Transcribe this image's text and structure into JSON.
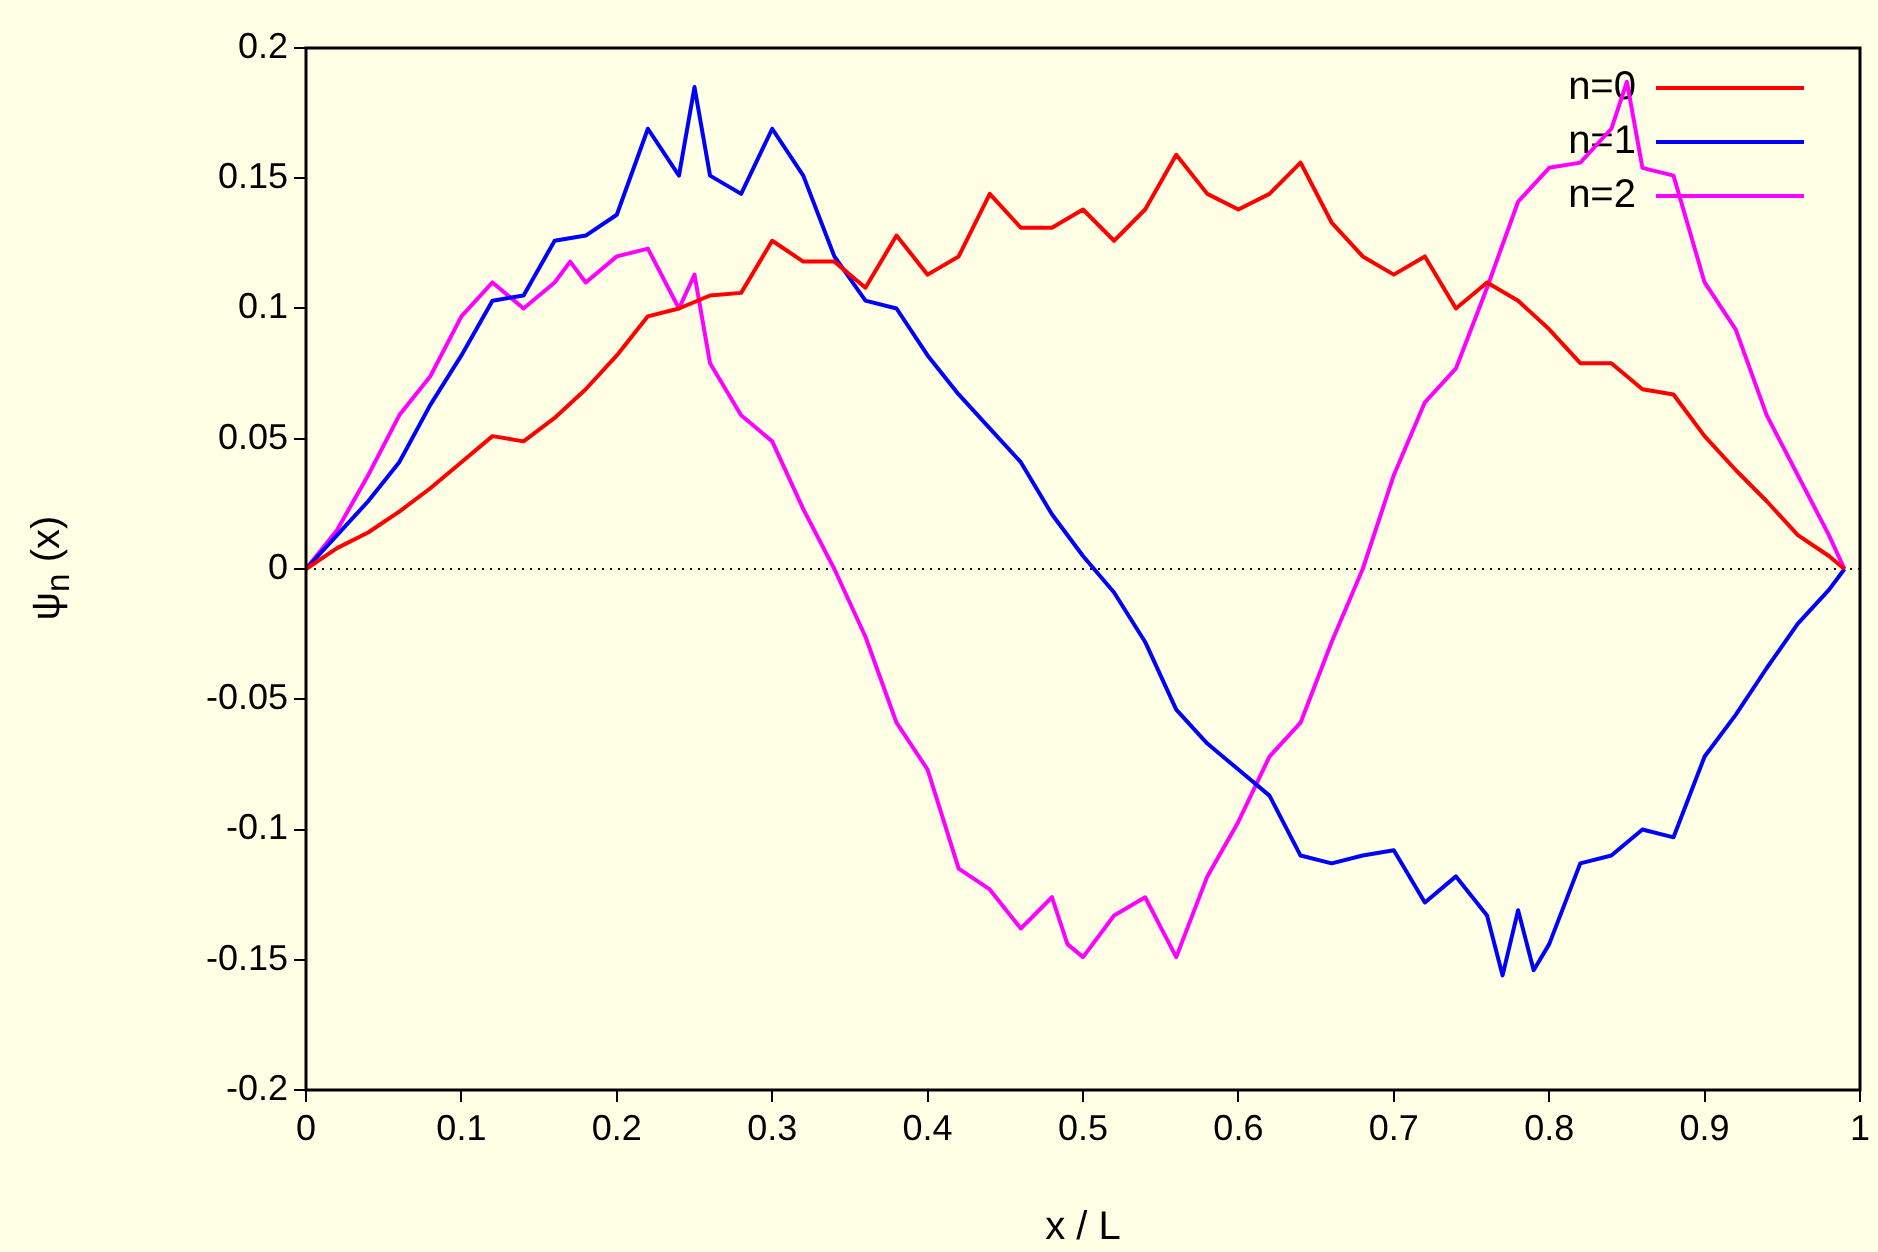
{
  "chart_data": {
    "type": "line",
    "xlabel": "x / L",
    "ylabel": "ψ$_{n}$ (x)",
    "xlim": [
      0,
      1
    ],
    "xticks": [
      0,
      0.1,
      0.2,
      0.3,
      0.4,
      0.5,
      0.6,
      0.7,
      0.8,
      0.9,
      1
    ],
    "ylim": [
      -0.2,
      0.2
    ],
    "yticks": [
      -0.2,
      -0.15,
      -0.1,
      -0.05,
      0,
      0.05,
      0.1,
      0.15,
      0.2
    ],
    "grid": false,
    "legend": "top right",
    "marker": "none",
    "line_style": "solid",
    "ref_lines": [
      {
        "axis": "y",
        "value": 0,
        "color": "#000000",
        "line_style": "dotted"
      }
    ],
    "series": [
      {
        "name": "n=0",
        "color": "#ff0000",
        "x": [
          0,
          0.02,
          0.04,
          0.06,
          0.08,
          0.1,
          0.12,
          0.14,
          0.16,
          0.18,
          0.2,
          0.22,
          0.24,
          0.26,
          0.28,
          0.3,
          0.32,
          0.34,
          0.36,
          0.38,
          0.4,
          0.42,
          0.44,
          0.46,
          0.48,
          0.5,
          0.52,
          0.54,
          0.56,
          0.58,
          0.6,
          0.62,
          0.64,
          0.66,
          0.68,
          0.7,
          0.72,
          0.74,
          0.76,
          0.78,
          0.8,
          0.82,
          0.84,
          0.86,
          0.88,
          0.9,
          0.92,
          0.94,
          0.96,
          0.98,
          0.99
        ],
        "values": [
          0,
          0.008,
          0.014,
          0.022,
          0.031,
          0.041,
          0.051,
          0.049,
          0.058,
          0.069,
          0.082,
          0.097,
          0.1,
          0.105,
          0.106,
          0.126,
          0.118,
          0.118,
          0.108,
          0.128,
          0.113,
          0.12,
          0.144,
          0.131,
          0.131,
          0.138,
          0.126,
          0.138,
          0.159,
          0.144,
          0.138,
          0.144,
          0.156,
          0.133,
          0.12,
          0.113,
          0.12,
          0.1,
          0.11,
          0.103,
          0.092,
          0.079,
          0.079,
          0.069,
          0.067,
          0.051,
          0.038,
          0.026,
          0.013,
          0.005,
          0
        ]
      },
      {
        "name": "n=1",
        "color": "#0000ff",
        "x": [
          0,
          0.02,
          0.04,
          0.06,
          0.08,
          0.1,
          0.12,
          0.14,
          0.16,
          0.18,
          0.2,
          0.22,
          0.24,
          0.25,
          0.26,
          0.28,
          0.3,
          0.32,
          0.34,
          0.36,
          0.38,
          0.4,
          0.42,
          0.44,
          0.46,
          0.48,
          0.5,
          0.52,
          0.54,
          0.56,
          0.58,
          0.6,
          0.62,
          0.64,
          0.66,
          0.68,
          0.7,
          0.72,
          0.74,
          0.76,
          0.77,
          0.78,
          0.79,
          0.8,
          0.82,
          0.84,
          0.86,
          0.88,
          0.9,
          0.92,
          0.94,
          0.96,
          0.98,
          0.99
        ],
        "values": [
          0,
          0.013,
          0.026,
          0.041,
          0.063,
          0.082,
          0.103,
          0.105,
          0.126,
          0.128,
          0.136,
          0.169,
          0.151,
          0.185,
          0.151,
          0.144,
          0.169,
          0.151,
          0.12,
          0.103,
          0.1,
          0.082,
          0.067,
          0.054,
          0.041,
          0.021,
          0.005,
          -0.009,
          -0.028,
          -0.054,
          -0.067,
          -0.077,
          -0.087,
          -0.11,
          -0.113,
          -0.11,
          -0.108,
          -0.128,
          -0.118,
          -0.133,
          -0.156,
          -0.131,
          -0.154,
          -0.144,
          -0.113,
          -0.11,
          -0.1,
          -0.103,
          -0.072,
          -0.056,
          -0.038,
          -0.021,
          -0.008,
          0
        ]
      },
      {
        "name": "n=2",
        "color": "#ff00ff",
        "x": [
          0,
          0.02,
          0.04,
          0.06,
          0.08,
          0.1,
          0.12,
          0.14,
          0.16,
          0.17,
          0.18,
          0.2,
          0.22,
          0.24,
          0.25,
          0.26,
          0.28,
          0.3,
          0.32,
          0.34,
          0.36,
          0.38,
          0.4,
          0.42,
          0.44,
          0.46,
          0.48,
          0.49,
          0.5,
          0.52,
          0.54,
          0.56,
          0.58,
          0.6,
          0.62,
          0.64,
          0.66,
          0.68,
          0.7,
          0.72,
          0.74,
          0.76,
          0.78,
          0.8,
          0.82,
          0.84,
          0.85,
          0.86,
          0.88,
          0.9,
          0.92,
          0.94,
          0.96,
          0.98,
          0.99
        ],
        "values": [
          0,
          0.015,
          0.036,
          0.059,
          0.074,
          0.097,
          0.11,
          0.1,
          0.11,
          0.118,
          0.11,
          0.12,
          0.123,
          0.1,
          0.113,
          0.079,
          0.059,
          0.049,
          0.023,
          0,
          -0.026,
          -0.059,
          -0.077,
          -0.115,
          -0.123,
          -0.138,
          -0.126,
          -0.144,
          -0.149,
          -0.133,
          -0.126,
          -0.149,
          -0.118,
          -0.097,
          -0.072,
          -0.059,
          -0.028,
          0,
          0.036,
          0.064,
          0.077,
          0.108,
          0.141,
          0.154,
          0.156,
          0.169,
          0.187,
          0.154,
          0.151,
          0.11,
          0.092,
          0.059,
          0.036,
          0.013,
          0
        ]
      }
    ]
  }
}
